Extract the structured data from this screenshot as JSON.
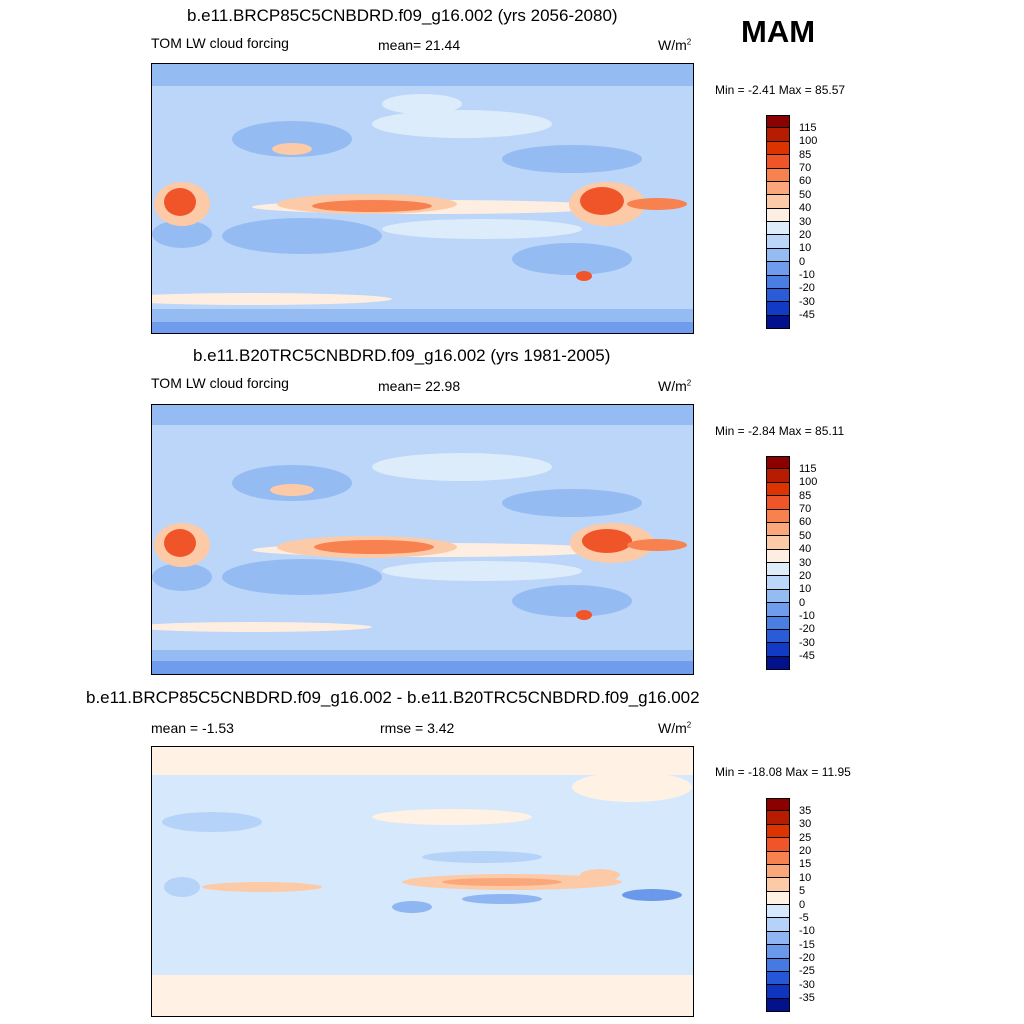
{
  "season": "MAM",
  "panels": [
    {
      "title": "b.e11.BRCP85C5CNBDRD.f09_g16.002 (yrs 2056-2080)",
      "left_label": "TOM LW cloud forcing",
      "mid_label": "mean=  21.44",
      "units_base": "W/m",
      "units_sup": "2",
      "minmax": "Min =  -2.41 Max =  85.57"
    },
    {
      "title": "b.e11.B20TRC5CNBDRD.f09_g16.002 (yrs 1981-2005)",
      "left_label": "TOM LW cloud forcing",
      "mid_label": "mean=  22.98",
      "units_base": "W/m",
      "units_sup": "2",
      "minmax": "Min =  -2.84 Max =  85.11"
    },
    {
      "title": "b.e11.BRCP85C5CNBDRD.f09_g16.002 - b.e11.B20TRC5CNBDRD.f09_g16.002",
      "left_label": "mean =  -1.53",
      "mid_label": "rmse =   3.42",
      "units_base": "W/m",
      "units_sup": "2",
      "minmax": "Min = -18.08 Max =  11.95"
    }
  ],
  "colorbars": [
    {
      "labels": [
        "115",
        "100",
        "85",
        "70",
        "60",
        "50",
        "40",
        "30",
        "20",
        "10",
        "0",
        "-10",
        "-20",
        "-30",
        "-45"
      ],
      "colors": [
        "#8b0000",
        "#b71c00",
        "#dd3300",
        "#f0552a",
        "#f7814f",
        "#fba77c",
        "#fdcaa8",
        "#feeee1",
        "#ddecfb",
        "#bbd6f9",
        "#95bbf3",
        "#6f9cec",
        "#4a7ee3",
        "#2a5cd8",
        "#123ac4",
        "#02128d"
      ]
    },
    {
      "labels": [
        "115",
        "100",
        "85",
        "70",
        "60",
        "50",
        "40",
        "30",
        "20",
        "10",
        "0",
        "-10",
        "-20",
        "-30",
        "-45"
      ],
      "colors": [
        "#8b0000",
        "#b71c00",
        "#dd3300",
        "#f0552a",
        "#f7814f",
        "#fba77c",
        "#fdcaa8",
        "#feeee1",
        "#ddecfb",
        "#bbd6f9",
        "#95bbf3",
        "#6f9cec",
        "#4a7ee3",
        "#2a5cd8",
        "#123ac4",
        "#02128d"
      ]
    },
    {
      "labels": [
        "35",
        "30",
        "25",
        "20",
        "15",
        "10",
        "5",
        "0",
        "-5",
        "-10",
        "-15",
        "-20",
        "-25",
        "-30",
        "-35"
      ],
      "colors": [
        "#8b0000",
        "#b71c00",
        "#dd3300",
        "#f0552a",
        "#f7814f",
        "#fba77c",
        "#fdcaa8",
        "#fff1e3",
        "#d6e8fc",
        "#b5d3f8",
        "#8fb6f2",
        "#6a98ea",
        "#4679e1",
        "#2657d6",
        "#0f34be",
        "#02128d"
      ]
    }
  ]
}
